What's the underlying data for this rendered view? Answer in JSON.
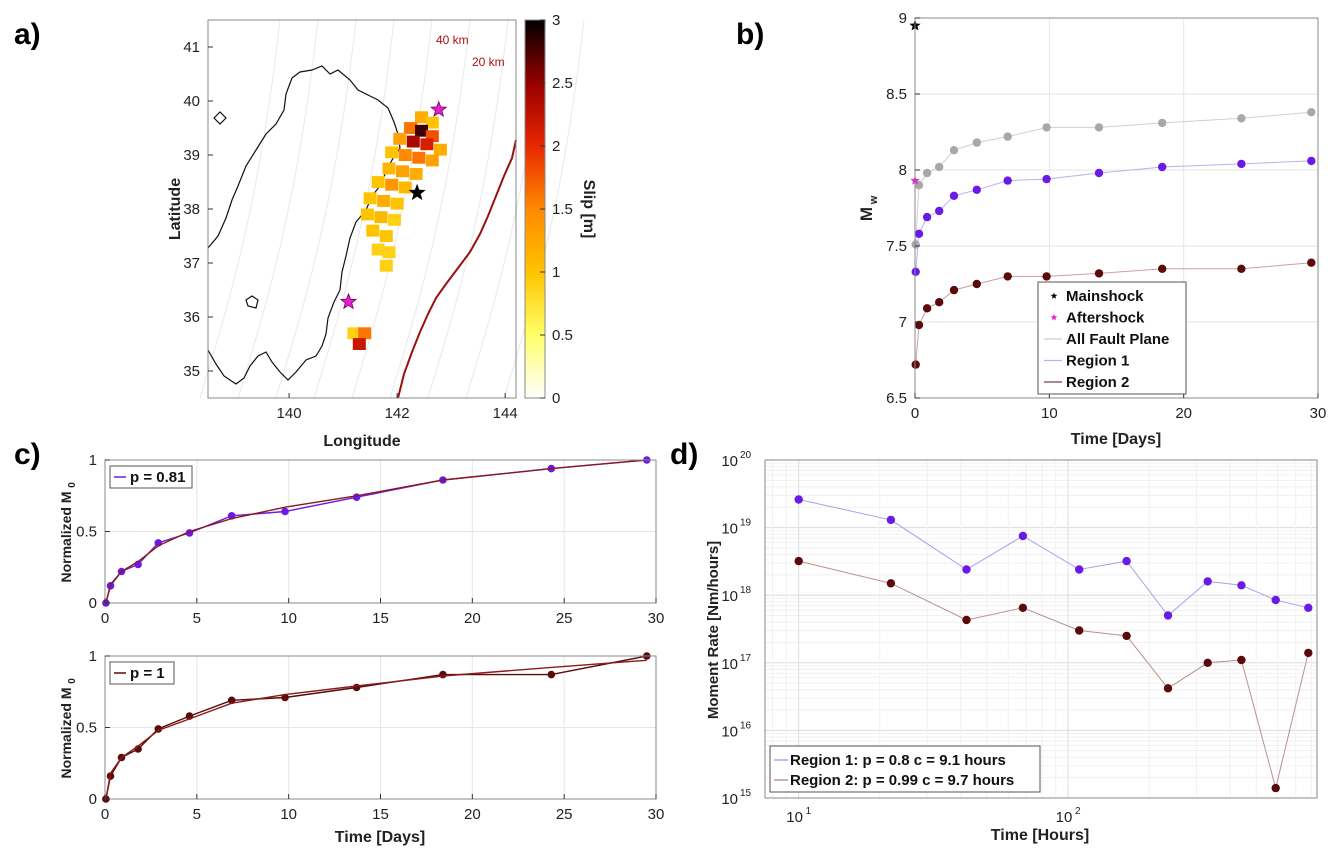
{
  "panel_labels": {
    "a": "a)",
    "b": "b)",
    "c": "c)",
    "d": "d)"
  },
  "chart_data": [
    {
      "panel": "a",
      "type": "heatmap",
      "xlabel": "Longitude",
      "ylabel": "Latitude",
      "xlim": [
        138.5,
        144.2
      ],
      "ylim": [
        34.5,
        41.5
      ],
      "xticks": [
        140,
        142,
        144
      ],
      "yticks": [
        35,
        36,
        37,
        38,
        39,
        40,
        41
      ],
      "colorbar": {
        "label": "Slip [m]",
        "range": [
          0,
          3
        ],
        "ticks": [
          0,
          0.5,
          1,
          1.5,
          2,
          2.5,
          3
        ]
      },
      "annotations": [
        "40 km",
        "20 km"
      ],
      "mainshock": {
        "lon": 142.37,
        "lat": 38.3
      },
      "aftershocks": [
        {
          "lon": 142.77,
          "lat": 39.84
        },
        {
          "lon": 141.1,
          "lat": 36.28
        }
      ],
      "slip_cells": [
        {
          "lon": 142.45,
          "lat": 39.7,
          "slip": 1.2
        },
        {
          "lon": 142.65,
          "lat": 39.6,
          "slip": 1.0
        },
        {
          "lon": 142.25,
          "lat": 39.5,
          "slip": 1.6
        },
        {
          "lon": 142.45,
          "lat": 39.45,
          "slip": 2.8
        },
        {
          "lon": 142.65,
          "lat": 39.35,
          "slip": 1.8
        },
        {
          "lon": 142.05,
          "lat": 39.3,
          "slip": 1.3
        },
        {
          "lon": 142.3,
          "lat": 39.25,
          "slip": 2.4
        },
        {
          "lon": 142.55,
          "lat": 39.2,
          "slip": 2.1
        },
        {
          "lon": 142.8,
          "lat": 39.1,
          "slip": 1.2
        },
        {
          "lon": 141.9,
          "lat": 39.05,
          "slip": 1.0
        },
        {
          "lon": 142.15,
          "lat": 39.0,
          "slip": 1.5
        },
        {
          "lon": 142.4,
          "lat": 38.95,
          "slip": 1.6
        },
        {
          "lon": 142.65,
          "lat": 38.9,
          "slip": 1.3
        },
        {
          "lon": 141.85,
          "lat": 38.75,
          "slip": 1.1
        },
        {
          "lon": 142.1,
          "lat": 38.7,
          "slip": 1.3
        },
        {
          "lon": 142.35,
          "lat": 38.65,
          "slip": 1.2
        },
        {
          "lon": 141.65,
          "lat": 38.5,
          "slip": 1.0
        },
        {
          "lon": 141.9,
          "lat": 38.45,
          "slip": 1.4
        },
        {
          "lon": 142.15,
          "lat": 38.4,
          "slip": 1.1
        },
        {
          "lon": 141.5,
          "lat": 38.2,
          "slip": 1.0
        },
        {
          "lon": 141.75,
          "lat": 38.15,
          "slip": 1.2
        },
        {
          "lon": 142.0,
          "lat": 38.1,
          "slip": 1.0
        },
        {
          "lon": 141.45,
          "lat": 37.9,
          "slip": 1.0
        },
        {
          "lon": 141.7,
          "lat": 37.85,
          "slip": 1.1
        },
        {
          "lon": 141.95,
          "lat": 37.8,
          "slip": 0.9
        },
        {
          "lon": 141.55,
          "lat": 37.6,
          "slip": 1.0
        },
        {
          "lon": 141.8,
          "lat": 37.5,
          "slip": 1.0
        },
        {
          "lon": 141.65,
          "lat": 37.25,
          "slip": 0.9
        },
        {
          "lon": 141.85,
          "lat": 37.2,
          "slip": 0.9
        },
        {
          "lon": 141.8,
          "lat": 36.95,
          "slip": 0.9
        },
        {
          "lon": 141.2,
          "lat": 35.7,
          "slip": 0.9
        },
        {
          "lon": 141.4,
          "lat": 35.7,
          "slip": 1.6
        },
        {
          "lon": 141.3,
          "lat": 35.5,
          "slip": 2.2
        }
      ]
    },
    {
      "panel": "b",
      "type": "line",
      "xlabel": "Time [Days]",
      "ylabel": "M",
      "ylabel_sub": "w",
      "xlim": [
        0,
        30
      ],
      "ylim": [
        6.5,
        9
      ],
      "xticks": [
        0,
        10,
        20,
        30
      ],
      "yticks": [
        6.5,
        7,
        7.5,
        8,
        8.5,
        9
      ],
      "legend": [
        "Mainshock",
        "Aftershock",
        "All Fault Plane",
        "Region 1",
        "Region 2"
      ],
      "mainshock": {
        "x": 0,
        "y": 8.95
      },
      "aftershock": {
        "x": 0.01,
        "y": 7.93
      },
      "x": [
        0.05,
        0.3,
        0.9,
        1.8,
        2.9,
        4.6,
        6.9,
        9.8,
        13.7,
        18.4,
        24.3,
        29.5
      ],
      "series": [
        {
          "name": "All Fault Plane",
          "color": "#a8a8a8",
          "values": [
            7.51,
            7.9,
            7.98,
            8.02,
            8.13,
            8.18,
            8.22,
            8.28,
            8.28,
            8.31,
            8.34,
            8.38
          ]
        },
        {
          "name": "Region 1",
          "color": "#6a1ae6",
          "values": [
            7.33,
            7.58,
            7.69,
            7.73,
            7.83,
            7.87,
            7.93,
            7.94,
            7.98,
            8.02,
            8.04,
            8.06
          ]
        },
        {
          "name": "Region 2",
          "color": "#5a0a0a",
          "values": [
            6.72,
            6.98,
            7.09,
            7.13,
            7.21,
            7.25,
            7.3,
            7.3,
            7.32,
            7.35,
            7.35,
            7.39
          ]
        }
      ]
    },
    {
      "panel": "c-top",
      "type": "line",
      "xlabel": "",
      "ylabel": "Normalized M",
      "ylabel_sub": "0",
      "xlim": [
        0,
        30
      ],
      "ylim": [
        0,
        1
      ],
      "xticks": [
        0,
        5,
        10,
        15,
        20,
        25,
        30
      ],
      "yticks": [
        0,
        0.5,
        1
      ],
      "legend": [
        "p = 0.81"
      ],
      "x": [
        0.05,
        0.3,
        0.9,
        1.8,
        2.9,
        4.6,
        6.9,
        9.8,
        13.7,
        18.4,
        24.3,
        29.5
      ],
      "series": [
        {
          "name": "p = 0.81",
          "color": "#6a1ae6",
          "values": [
            0.0,
            0.12,
            0.22,
            0.27,
            0.42,
            0.49,
            0.61,
            0.64,
            0.74,
            0.86,
            0.94,
            1.0
          ]
        },
        {
          "color": "#8b1a1a",
          "values": [
            0.0,
            0.13,
            0.22,
            0.29,
            0.4,
            0.5,
            0.59,
            0.67,
            0.75,
            0.86,
            0.94,
            1.0
          ]
        }
      ]
    },
    {
      "panel": "c-bottom",
      "type": "line",
      "xlabel": "Time [Days]",
      "ylabel": "Normalized M",
      "ylabel_sub": "0",
      "xlim": [
        0,
        30
      ],
      "ylim": [
        0,
        1
      ],
      "xticks": [
        0,
        5,
        10,
        15,
        20,
        25,
        30
      ],
      "yticks": [
        0,
        0.5,
        1
      ],
      "legend": [
        "p = 1"
      ],
      "x": [
        0.05,
        0.3,
        0.9,
        1.8,
        2.9,
        4.6,
        6.9,
        9.8,
        13.7,
        18.4,
        24.3,
        29.5
      ],
      "series": [
        {
          "name": "p = 1",
          "color": "#5a0a0a",
          "values": [
            0.0,
            0.16,
            0.29,
            0.35,
            0.49,
            0.58,
            0.69,
            0.71,
            0.78,
            0.87,
            0.87,
            1.0
          ]
        },
        {
          "color": "#8b1a1a",
          "values": [
            0.0,
            0.18,
            0.29,
            0.37,
            0.48,
            0.56,
            0.67,
            0.73,
            0.79,
            0.86,
            0.92,
            0.97
          ]
        }
      ]
    },
    {
      "panel": "d",
      "type": "line",
      "xlabel": "Time [Hours]",
      "ylabel": "Moment Rate [Nm/hours]",
      "xscale": "log",
      "yscale": "log",
      "xlim": [
        7.5,
        840
      ],
      "ylim": [
        1000000000000000.0,
        1e+20
      ],
      "xticks_exp": [
        "1",
        "2"
      ],
      "yticks_exp": [
        "15",
        "16",
        "17",
        "18",
        "19",
        "20"
      ],
      "tick_base": "10",
      "legend": [
        "Region 1: p = 0.8 c = 9.1 hours",
        "Region 2: p = 0.99 c = 9.7 hours"
      ],
      "x": [
        10,
        22,
        42,
        68,
        110,
        165,
        235,
        330,
        440,
        590,
        780
      ],
      "series": [
        {
          "name": "Region 1: p = 0.8 c = 9.1 hours",
          "color": "#6a1ae6",
          "values": [
            2.6e+19,
            1.3e+19,
            2.4e+18,
            7.5e+18,
            2.4e+18,
            3.2e+18,
            5e+17,
            1.6e+18,
            1.4e+18,
            8.5e+17,
            6.5e+17
          ]
        },
        {
          "name": "Region 2: p = 0.99 c = 9.7 hours",
          "color": "#5a0a0a",
          "values": [
            3.2e+18,
            1.5e+18,
            4.3e+17,
            6.5e+17,
            3e+17,
            2.5e+17,
            4.2e+16,
            1e+17,
            1.1e+17,
            1400000000000000.0,
            1.4e+17
          ]
        }
      ]
    }
  ],
  "colors": {
    "region1": "#6a1ae6",
    "region1_line": "#a9a0ee",
    "region2": "#5a0a0a",
    "region2_line": "#b98f94",
    "all_fault": "#a8a8a8",
    "aftershock": "#e61ecf",
    "trench": "#9a1010"
  }
}
